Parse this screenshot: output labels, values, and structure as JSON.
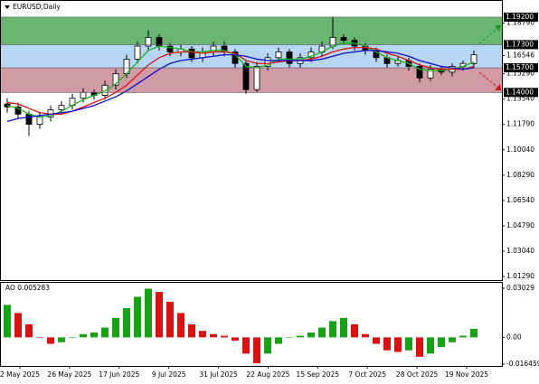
{
  "chart_data": {
    "type": "candlestick",
    "title": "EURUSD,Daily",
    "xlabels": [
      "2 May 2025",
      "26 May 2025",
      "17 Jun 2025",
      "9 Jul 2025",
      "31 Jul 2025",
      "22 Aug 2025",
      "15 Sep 2025",
      "7 Oct 2025",
      "28 Oct 2025",
      "19 Nov 2025"
    ],
    "open": [
      1.132,
      1.13,
      1.125,
      1.118,
      1.123,
      1.128,
      1.131,
      1.136,
      1.14,
      1.138,
      1.145,
      1.153,
      1.163,
      1.172,
      1.178,
      1.172,
      1.168,
      1.17,
      1.164,
      1.168,
      1.172,
      1.168,
      1.16,
      1.142,
      1.158,
      1.164,
      1.168,
      1.16,
      1.164,
      1.168,
      1.172,
      1.178,
      1.176,
      1.172,
      1.169,
      1.164,
      1.16,
      1.162,
      1.158,
      1.15,
      1.156,
      1.154,
      1.158,
      1.16
    ],
    "high": [
      1.136,
      1.133,
      1.127,
      1.126,
      1.131,
      1.134,
      1.139,
      1.143,
      1.142,
      1.148,
      1.156,
      1.166,
      1.175,
      1.183,
      1.18,
      1.174,
      1.173,
      1.172,
      1.171,
      1.175,
      1.175,
      1.17,
      1.162,
      1.161,
      1.167,
      1.171,
      1.17,
      1.167,
      1.171,
      1.175,
      1.192,
      1.18,
      1.178,
      1.174,
      1.171,
      1.166,
      1.165,
      1.164,
      1.16,
      1.159,
      1.158,
      1.16,
      1.162,
      1.169
    ],
    "low": [
      1.126,
      1.122,
      1.11,
      1.115,
      1.12,
      1.125,
      1.128,
      1.133,
      1.135,
      1.135,
      1.142,
      1.15,
      1.16,
      1.169,
      1.169,
      1.165,
      1.165,
      1.161,
      1.161,
      1.165,
      1.165,
      1.157,
      1.139,
      1.14,
      1.155,
      1.161,
      1.157,
      1.157,
      1.161,
      1.165,
      1.17,
      1.173,
      1.169,
      1.166,
      1.161,
      1.157,
      1.158,
      1.155,
      1.147,
      1.148,
      1.152,
      1.151,
      1.155,
      1.157
    ],
    "close": [
      1.13,
      1.125,
      1.118,
      1.123,
      1.128,
      1.131,
      1.136,
      1.14,
      1.138,
      1.145,
      1.153,
      1.163,
      1.172,
      1.178,
      1.172,
      1.168,
      1.17,
      1.164,
      1.168,
      1.172,
      1.168,
      1.16,
      1.142,
      1.158,
      1.164,
      1.168,
      1.16,
      1.164,
      1.168,
      1.172,
      1.178,
      1.176,
      1.172,
      1.169,
      1.164,
      1.16,
      1.162,
      1.158,
      1.15,
      1.156,
      1.154,
      1.158,
      1.16,
      1.166
    ],
    "series": [
      {
        "color": "#1fb81f",
        "values": [
          1.131,
          1.129,
          1.125,
          1.123,
          1.124,
          1.127,
          1.131,
          1.135,
          1.138,
          1.141,
          1.146,
          1.153,
          1.161,
          1.169,
          1.172,
          1.171,
          1.17,
          1.168,
          1.168,
          1.169,
          1.169,
          1.166,
          1.158,
          1.157,
          1.159,
          1.163,
          1.163,
          1.163,
          1.165,
          1.168,
          1.172,
          1.174,
          1.174,
          1.172,
          1.168,
          1.164,
          1.162,
          1.16,
          1.156,
          1.155,
          1.155,
          1.156,
          1.158,
          1.161
        ]
      },
      {
        "color": "#e01010",
        "values": [
          1.133,
          1.132,
          1.129,
          1.126,
          1.125,
          1.125,
          1.127,
          1.13,
          1.133,
          1.136,
          1.14,
          1.145,
          1.152,
          1.159,
          1.164,
          1.167,
          1.168,
          1.168,
          1.167,
          1.168,
          1.168,
          1.167,
          1.162,
          1.16,
          1.16,
          1.161,
          1.162,
          1.162,
          1.163,
          1.165,
          1.168,
          1.17,
          1.171,
          1.171,
          1.17,
          1.167,
          1.165,
          1.162,
          1.159,
          1.157,
          1.156,
          1.156,
          1.156,
          1.158
        ]
      },
      {
        "color": "#1010d0",
        "values": [
          1.12,
          1.122,
          1.123,
          1.124,
          1.125,
          1.126,
          1.127,
          1.129,
          1.131,
          1.134,
          1.137,
          1.141,
          1.146,
          1.151,
          1.156,
          1.16,
          1.162,
          1.163,
          1.164,
          1.165,
          1.166,
          1.166,
          1.165,
          1.163,
          1.162,
          1.162,
          1.162,
          1.162,
          1.162,
          1.163,
          1.165,
          1.167,
          1.168,
          1.169,
          1.169,
          1.168,
          1.167,
          1.165,
          1.162,
          1.16,
          1.158,
          1.157,
          1.156,
          1.157
        ]
      }
    ],
    "ylim": [
      1.0098,
      1.2032
    ],
    "yticks": [
      {
        "value": 1.1879,
        "label": "1.18790"
      },
      {
        "value": 1.16546,
        "label": "1.16546"
      },
      {
        "value": 1.1529,
        "label": "1.15290"
      },
      {
        "value": 1.1354,
        "label": "1.13540"
      },
      {
        "value": 1.1179,
        "label": "1.11790"
      },
      {
        "value": 1.1004,
        "label": "1.10040"
      },
      {
        "value": 1.0829,
        "label": "1.08290"
      },
      {
        "value": 1.0654,
        "label": "1.06540"
      },
      {
        "value": 1.0479,
        "label": "1.04790"
      },
      {
        "value": 1.0304,
        "label": "1.03040"
      },
      {
        "value": 1.0129,
        "label": "1.01290"
      }
    ],
    "levels": [
      {
        "value": 1.192,
        "label": "1.19200"
      },
      {
        "value": 1.173,
        "label": "1.17300"
      },
      {
        "value": 1.157,
        "label": "1.15700"
      },
      {
        "value": 1.14,
        "label": "1.14000"
      }
    ],
    "zone_colors": [
      "#4fa95a",
      "#a9cff2",
      "#c98a95"
    ],
    "ao": {
      "label": "AO 0.005283",
      "values": [
        0.02,
        0.015,
        0.008,
        0.0,
        -0.004,
        -0.003,
        0.0,
        0.002,
        0.003,
        0.006,
        0.012,
        0.018,
        0.025,
        0.03,
        0.028,
        0.022,
        0.015,
        0.008,
        0.004,
        0.002,
        0.001,
        -0.002,
        -0.01,
        -0.016,
        -0.01,
        -0.004,
        0.0,
        0.001,
        0.003,
        0.006,
        0.01,
        0.012,
        0.008,
        0.002,
        -0.004,
        -0.008,
        -0.009,
        -0.008,
        -0.012,
        -0.01,
        -0.006,
        -0.003,
        0.001,
        0.005283
      ],
      "ylim": [
        -0.0176,
        0.0336
      ],
      "yticks": [
        0.03029,
        {
          "value": 0,
          "label": "0.00"
        },
        -0.016459
      ],
      "colors": [
        "#13a313",
        "#e01010"
      ]
    }
  }
}
